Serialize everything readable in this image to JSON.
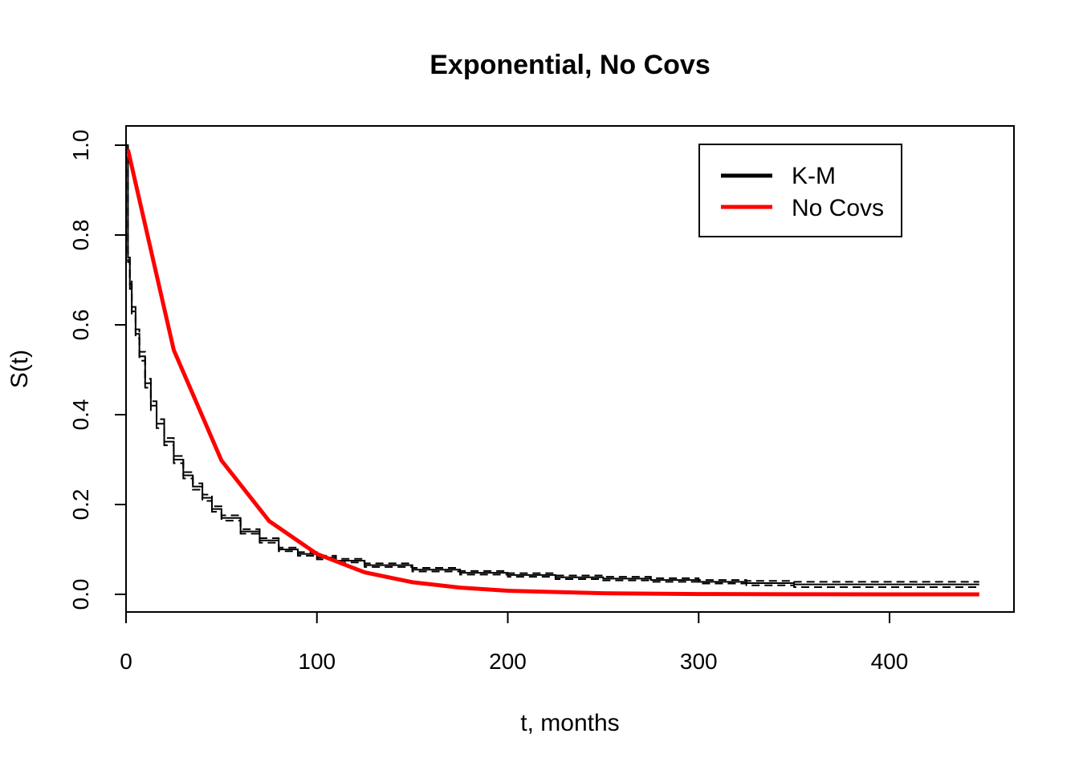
{
  "chart_data": {
    "type": "line",
    "title": "Exponential, No Covs",
    "xlabel": "t, months",
    "ylabel": "S(t)",
    "xlim": [
      0,
      450
    ],
    "ylim": [
      -0.04,
      1.04
    ],
    "x_ticks": [
      0,
      100,
      200,
      300,
      400
    ],
    "x_tick_labels": [
      "0",
      "100",
      "200",
      "300",
      "400"
    ],
    "y_ticks": [
      0.0,
      0.2,
      0.4,
      0.6,
      0.8,
      1.0
    ],
    "y_tick_labels": [
      "0.0",
      "0.2",
      "0.4",
      "0.6",
      "0.8",
      "1.0"
    ],
    "grid": false,
    "legend_position": "top-right",
    "series": [
      {
        "name": "K-M",
        "color": "#000000",
        "style": "step",
        "x": [
          0,
          1,
          2,
          3,
          5,
          7,
          10,
          13,
          16,
          20,
          25,
          30,
          35,
          40,
          45,
          50,
          60,
          70,
          80,
          90,
          100,
          110,
          125,
          150,
          175,
          200,
          225,
          250,
          275,
          300,
          325,
          350,
          375,
          400,
          447
        ],
        "y": [
          1.0,
          0.75,
          0.69,
          0.63,
          0.58,
          0.53,
          0.47,
          0.42,
          0.38,
          0.34,
          0.3,
          0.265,
          0.24,
          0.215,
          0.19,
          0.17,
          0.14,
          0.12,
          0.1,
          0.09,
          0.082,
          0.075,
          0.065,
          0.055,
          0.048,
          0.043,
          0.038,
          0.035,
          0.032,
          0.028,
          0.025,
          0.022,
          0.022,
          0.022,
          0.022
        ],
        "ci_lower": [
          1.0,
          0.74,
          0.68,
          0.62,
          0.57,
          0.52,
          0.46,
          0.41,
          0.37,
          0.332,
          0.292,
          0.258,
          0.233,
          0.208,
          0.184,
          0.164,
          0.135,
          0.115,
          0.096,
          0.086,
          0.078,
          0.071,
          0.061,
          0.051,
          0.044,
          0.039,
          0.034,
          0.031,
          0.028,
          0.024,
          0.02,
          0.016,
          0.016,
          0.016,
          0.016
        ],
        "ci_upper": [
          1.0,
          0.76,
          0.7,
          0.64,
          0.59,
          0.54,
          0.48,
          0.43,
          0.39,
          0.348,
          0.308,
          0.272,
          0.247,
          0.222,
          0.196,
          0.176,
          0.145,
          0.125,
          0.104,
          0.094,
          0.086,
          0.079,
          0.069,
          0.059,
          0.052,
          0.047,
          0.042,
          0.039,
          0.036,
          0.032,
          0.03,
          0.028,
          0.028,
          0.028,
          0.028
        ]
      },
      {
        "name": "No Covs",
        "color": "#ff0000",
        "style": "line",
        "x": [
          1,
          25,
          50,
          75,
          100,
          125,
          150,
          175,
          200,
          250,
          300,
          350,
          400,
          447
        ],
        "y": [
          0.99,
          0.544,
          0.298,
          0.163,
          0.09,
          0.049,
          0.027,
          0.015,
          0.008,
          0.0025,
          0.0007,
          0.0002,
          0.0001,
          0.0
        ]
      }
    ]
  }
}
